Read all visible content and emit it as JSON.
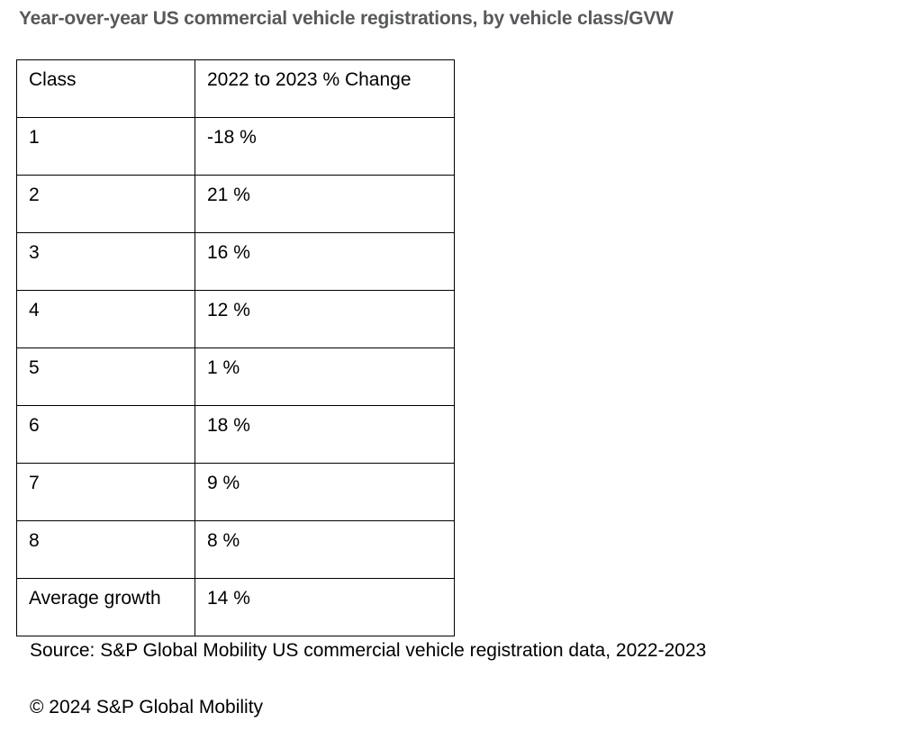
{
  "title": "Year-over-year US commercial vehicle registrations, by vehicle class/GVW",
  "table": {
    "header": [
      "Class",
      "2022 to 2023 % Change"
    ],
    "rows": [
      [
        "1",
        "-18 %"
      ],
      [
        "2",
        "21 %"
      ],
      [
        "3",
        "16 %"
      ],
      [
        "4",
        "12 %"
      ],
      [
        "5",
        "1 %"
      ],
      [
        "6",
        "18 %"
      ],
      [
        "7",
        "9 %"
      ],
      [
        "8",
        "8 %"
      ],
      [
        "Average growth",
        "14 %"
      ]
    ]
  },
  "source": "Source: S&P Global Mobility US commercial vehicle registration data, 2022-2023",
  "copyright": "© 2024 S&P Global Mobility",
  "colors": {
    "title_text": "#58595B",
    "body_text": "#000000",
    "table_border": "#000000",
    "background": "#FFFFFF"
  },
  "chart_data": {
    "type": "table",
    "title": "Year-over-year US commercial vehicle registrations, by vehicle class/GVW",
    "columns": [
      "Class",
      "2022 to 2023 % Change"
    ],
    "categories": [
      "1",
      "2",
      "3",
      "4",
      "5",
      "6",
      "7",
      "8",
      "Average growth"
    ],
    "values": [
      -18,
      21,
      16,
      12,
      1,
      18,
      9,
      8,
      14
    ],
    "value_labels": [
      "-18 %",
      "21 %",
      "16 %",
      "12 %",
      "1 %",
      "18 %",
      "9 %",
      "8 %",
      "14 %"
    ],
    "value_unit": "percent",
    "source": "Source: S&P Global Mobility US commercial vehicle registration data, 2022-2023",
    "copyright": "© 2024 S&P Global Mobility"
  }
}
